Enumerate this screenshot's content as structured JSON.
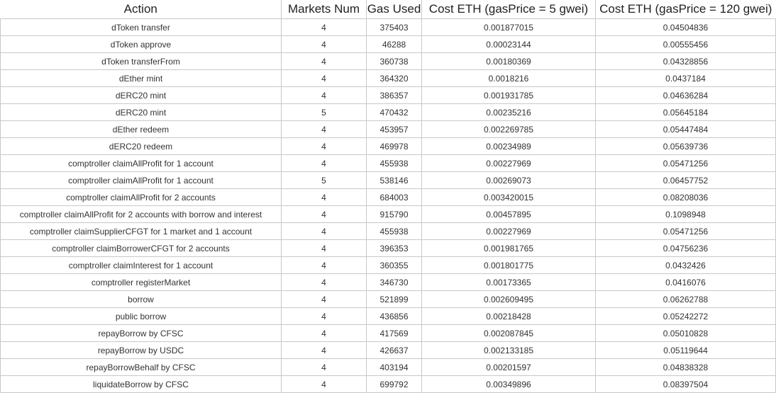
{
  "table": {
    "headers": [
      "Action",
      "Markets Num",
      "Gas Used",
      "Cost ETH (gasPrice = 5 gwei)",
      "Cost ETH (gasPrice = 120 gwei)"
    ],
    "rows": [
      [
        "dToken transfer",
        "4",
        "375403",
        "0.001877015",
        "0.04504836"
      ],
      [
        "dToken approve",
        "4",
        "46288",
        "0.00023144",
        "0.00555456"
      ],
      [
        "dToken transferFrom",
        "4",
        "360738",
        "0.00180369",
        "0.04328856"
      ],
      [
        "dEther mint",
        "4",
        "364320",
        "0.0018216",
        "0.0437184"
      ],
      [
        "dERC20 mint",
        "4",
        "386357",
        "0.001931785",
        "0.04636284"
      ],
      [
        "dERC20 mint",
        "5",
        "470432",
        "0.00235216",
        "0.05645184"
      ],
      [
        "dEther redeem",
        "4",
        "453957",
        "0.002269785",
        "0.05447484"
      ],
      [
        "dERC20 redeem",
        "4",
        "469978",
        "0.00234989",
        "0.05639736"
      ],
      [
        "comptroller claimAllProfit for 1 account",
        "4",
        "455938",
        "0.00227969",
        "0.05471256"
      ],
      [
        "comptroller claimAllProfit for 1 account",
        "5",
        "538146",
        "0.00269073",
        "0.06457752"
      ],
      [
        "comptroller claimAllProfit for 2 accounts",
        "4",
        "684003",
        "0.003420015",
        "0.08208036"
      ],
      [
        "comptroller claimAllProfit for 2 accounts with borrow and interest",
        "4",
        "915790",
        "0.00457895",
        "0.1098948"
      ],
      [
        "comptroller claimSupplierCFGT for 1 market and 1 account",
        "4",
        "455938",
        "0.00227969",
        "0.05471256"
      ],
      [
        "comptroller claimBorrowerCFGT for 2 accounts",
        "4",
        "396353",
        "0.001981765",
        "0.04756236"
      ],
      [
        "comptroller claimInterest for 1 account",
        "4",
        "360355",
        "0.001801775",
        "0.0432426"
      ],
      [
        "comptroller registerMarket",
        "4",
        "346730",
        "0.00173365",
        "0.0416076"
      ],
      [
        "borrow",
        "4",
        "521899",
        "0.002609495",
        "0.06262788"
      ],
      [
        "public borrow",
        "4",
        "436856",
        "0.00218428",
        "0.05242272"
      ],
      [
        "repayBorrow by CFSC",
        "4",
        "417569",
        "0.002087845",
        "0.05010828"
      ],
      [
        "repayBorrow by USDC",
        "4",
        "426637",
        "0.002133185",
        "0.05119644"
      ],
      [
        "repayBorrowBehalf by CFSC",
        "4",
        "403194",
        "0.00201597",
        "0.04838328"
      ],
      [
        "liquidateBorrow by CFSC",
        "4",
        "699792",
        "0.00349896",
        "0.08397504"
      ]
    ]
  }
}
